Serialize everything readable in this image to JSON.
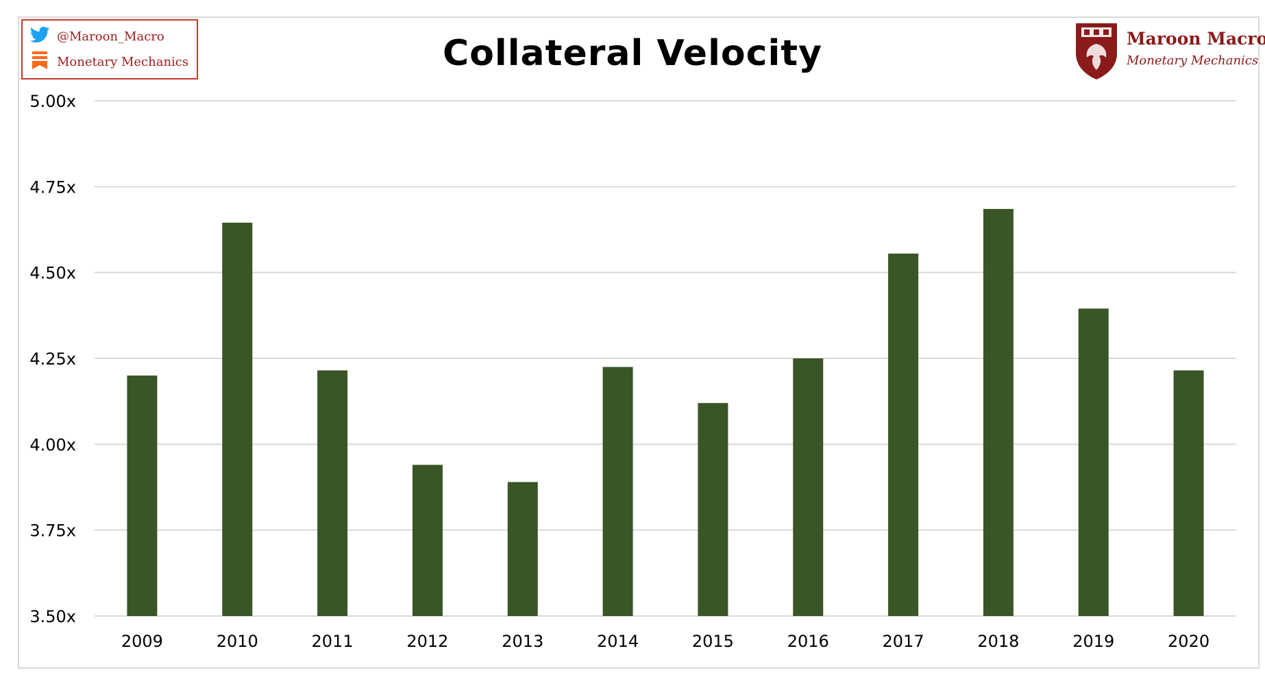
{
  "header": {
    "twitter_handle": "@Maroon_Macro",
    "newsletter_name": "Monetary Mechanics",
    "social_icons": [
      "twitter-bird-icon",
      "substack-bookmark-icon"
    ],
    "social_border_color": "#c0392b",
    "social_text_color": "#9e1b1b"
  },
  "brand": {
    "name": "Maroon Macro",
    "subtitle": "Monetary Mechanics",
    "logo": "shield-crest-icon",
    "color": "#8b1a1a"
  },
  "chart_data": {
    "type": "bar",
    "title": "Collateral Velocity",
    "xlabel": "",
    "ylabel": "",
    "categories": [
      "2009",
      "2010",
      "2011",
      "2012",
      "2013",
      "2014",
      "2015",
      "2016",
      "2017",
      "2018",
      "2019",
      "2020"
    ],
    "series": [
      {
        "values": [
          4.2,
          4.645,
          4.215,
          3.94,
          3.89,
          4.225,
          4.12,
          4.25,
          4.555,
          4.685,
          4.395,
          4.215
        ],
        "color": "#3a5526"
      }
    ],
    "ylim": [
      3.5,
      5.0
    ],
    "yticks": [
      3.5,
      3.75,
      4.0,
      4.25,
      4.5,
      4.75,
      5.0
    ],
    "ytick_labels": [
      "3.50x",
      "3.75x",
      "4.00x",
      "4.25x",
      "4.50x",
      "4.75x",
      "5.00x"
    ],
    "grid": true,
    "gridline_color": "#d9d9d9",
    "legend": "none"
  }
}
